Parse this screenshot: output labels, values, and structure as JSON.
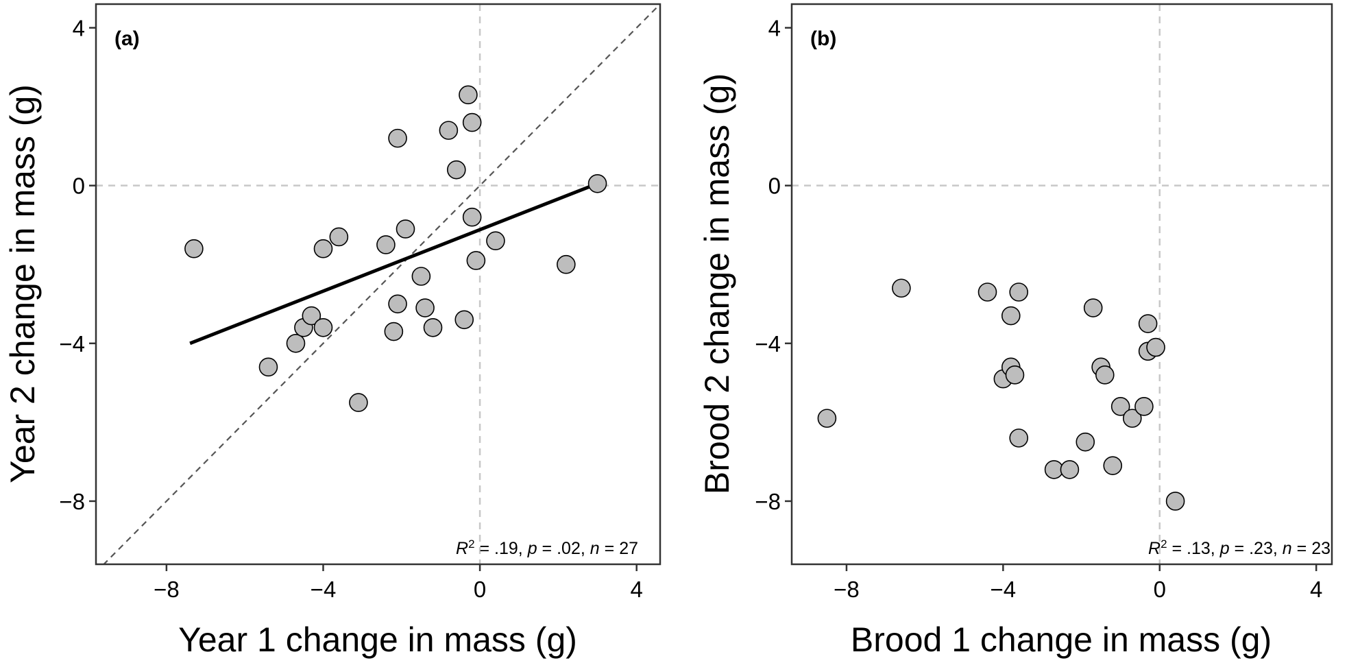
{
  "chart_data": [
    {
      "type": "scatter",
      "panel_label": "(a)",
      "xlabel": "Year 1 change in mass (g)",
      "ylabel": "Year 2 change in mass (g)",
      "xlim": [
        -9.8,
        4.6
      ],
      "ylim": [
        -9.6,
        4.6
      ],
      "xticks": [
        -8,
        -4,
        0,
        4
      ],
      "yticks": [
        -8,
        -4,
        0,
        4
      ],
      "xtick_labels": [
        "−8",
        "−4",
        "0",
        "4"
      ],
      "ytick_labels": [
        "−8",
        "−4",
        "0",
        "4"
      ],
      "reference_lines": {
        "vertical_x": 0,
        "horizontal_y": 0,
        "identity_line": true
      },
      "fit_line": {
        "x": [
          -7.4,
          3.0
        ],
        "y": [
          -4.0,
          0.05
        ]
      },
      "annotation": {
        "r2": ".19",
        "p": ".02",
        "n": "27"
      },
      "points": {
        "x": [
          -7.3,
          -5.4,
          -4.7,
          -4.5,
          -4.3,
          -4.0,
          -4.0,
          -3.6,
          -3.1,
          -2.4,
          -2.2,
          -2.1,
          -2.1,
          -1.9,
          -1.5,
          -1.4,
          -1.2,
          -0.8,
          -0.6,
          -0.4,
          -0.3,
          -0.2,
          -0.2,
          -0.1,
          0.4,
          2.2,
          3.0
        ],
        "y": [
          -1.6,
          -4.6,
          -4.0,
          -3.6,
          -3.3,
          -3.6,
          -1.6,
          -1.3,
          -5.5,
          -1.5,
          -3.7,
          1.2,
          -3.0,
          -1.1,
          -2.3,
          -3.1,
          -3.6,
          1.4,
          0.4,
          -3.4,
          2.3,
          1.6,
          -0.8,
          -1.9,
          -1.4,
          -2.0,
          0.05
        ]
      }
    },
    {
      "type": "scatter",
      "panel_label": "(b)",
      "xlabel": "Brood 1 change in mass (g)",
      "ylabel": "Brood 2 change in mass (g)",
      "xlim": [
        -9.4,
        4.4
      ],
      "ylim": [
        -9.6,
        4.6
      ],
      "xticks": [
        -8,
        -4,
        0,
        4
      ],
      "yticks": [
        -8,
        -4,
        0,
        4
      ],
      "xtick_labels": [
        "−8",
        "−4",
        "0",
        "4"
      ],
      "ytick_labels": [
        "−8",
        "−4",
        "0",
        "4"
      ],
      "reference_lines": {
        "vertical_x": 0,
        "horizontal_y": 0,
        "identity_line": false
      },
      "annotation": {
        "r2": ".13",
        "p": ".23",
        "n": "23"
      },
      "points": {
        "x": [
          -8.5,
          -6.6,
          -4.4,
          -4.0,
          -3.8,
          -3.8,
          -3.7,
          -3.6,
          -3.6,
          -2.7,
          -2.3,
          -1.9,
          -1.7,
          -1.5,
          -1.4,
          -1.2,
          -1.0,
          -0.7,
          -0.4,
          -0.3,
          -0.3,
          -0.1,
          0.4
        ],
        "y": [
          -5.9,
          -2.6,
          -2.7,
          -4.9,
          -3.3,
          -4.6,
          -4.8,
          -2.7,
          -6.4,
          -7.2,
          -7.2,
          -6.5,
          -3.1,
          -4.6,
          -4.8,
          -7.1,
          -5.6,
          -5.9,
          -5.6,
          -3.5,
          -4.2,
          -4.1,
          -8.0
        ]
      }
    }
  ]
}
